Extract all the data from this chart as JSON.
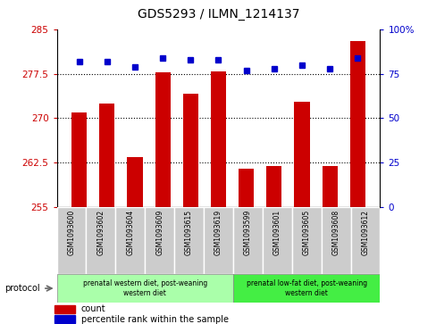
{
  "title": "GDS5293 / ILMN_1214137",
  "samples": [
    "GSM1093600",
    "GSM1093602",
    "GSM1093604",
    "GSM1093609",
    "GSM1093615",
    "GSM1093619",
    "GSM1093599",
    "GSM1093601",
    "GSM1093605",
    "GSM1093608",
    "GSM1093612"
  ],
  "bar_values": [
    271.0,
    272.5,
    263.5,
    277.8,
    274.2,
    277.9,
    261.5,
    262.0,
    272.8,
    262.0,
    283.0
  ],
  "percentile_values": [
    82,
    82,
    79,
    84,
    83,
    83,
    77,
    78,
    80,
    78,
    84
  ],
  "ylim_left": [
    255,
    285
  ],
  "ylim_right": [
    0,
    100
  ],
  "yticks_left": [
    255,
    262.5,
    270,
    277.5,
    285
  ],
  "yticks_right": [
    0,
    25,
    50,
    75,
    100
  ],
  "ytick_labels_left": [
    "255",
    "262.5",
    "270",
    "277.5",
    "285"
  ],
  "ytick_labels_right": [
    "0",
    "25",
    "50",
    "75",
    "100%"
  ],
  "bar_color": "#cc0000",
  "percentile_color": "#0000cc",
  "group1_label": "prenatal western diet, post-weaning\nwestern diet",
  "group2_label": "prenatal low-fat diet, post-weaning\nwestern diet",
  "group1_count": 6,
  "group2_count": 5,
  "group1_bg": "#aaffaa",
  "group2_bg": "#44ee44",
  "xlabel_bg": "#cccccc",
  "legend_count_label": "count",
  "legend_pct_label": "percentile rank within the sample",
  "protocol_label": "protocol"
}
